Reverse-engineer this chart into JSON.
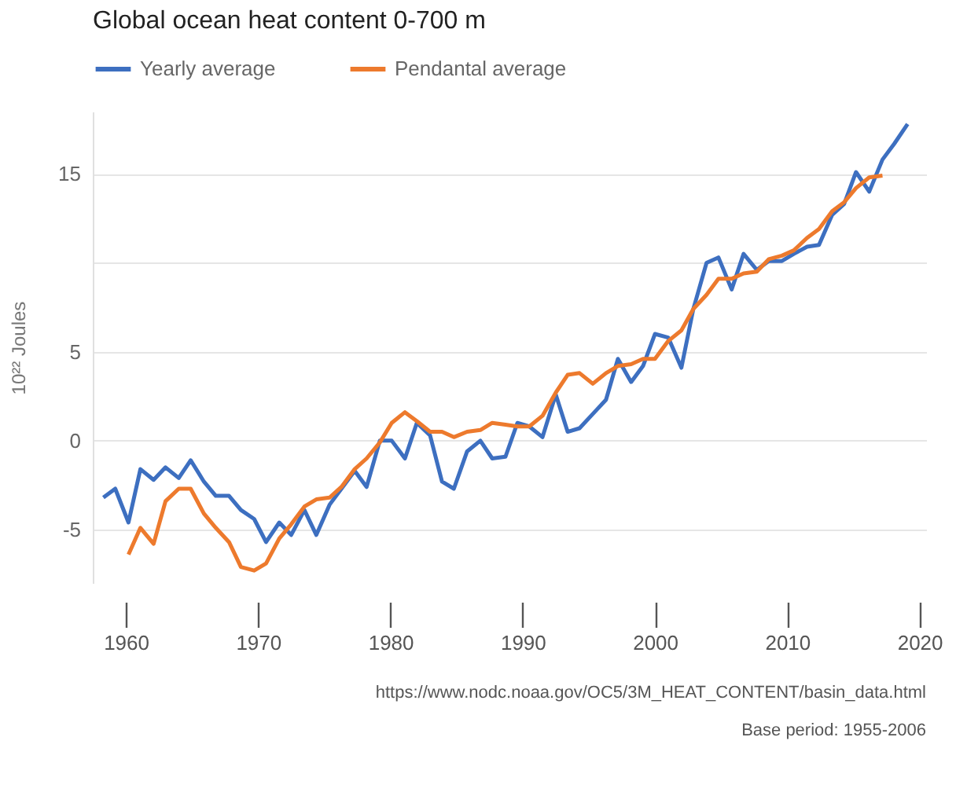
{
  "chart_data": {
    "type": "line",
    "title": "Global ocean heat content 0-700 m",
    "ylabel": "10²² Joules",
    "x": [
      1958.3,
      1959.2,
      1960.2,
      1961.1,
      1962.1,
      1963.0,
      1964.0,
      1964.9,
      1965.9,
      1966.8,
      1967.8,
      1968.7,
      1969.7,
      1970.6,
      1971.6,
      1972.5,
      1973.5,
      1974.4,
      1975.4,
      1976.3,
      1977.3,
      1978.2,
      1979.2,
      1980.1,
      1981.1,
      1982.0,
      1983.0,
      1983.9,
      1984.8,
      1985.8,
      1986.8,
      1987.7,
      1988.7,
      1989.6,
      1990.5,
      1991.5,
      1992.5,
      1993.4,
      1994.3,
      1995.3,
      1996.3,
      1997.2,
      1998.2,
      1999.1,
      2000.0,
      2001.0,
      2002.0,
      2002.9,
      2003.9,
      2004.8,
      2005.8,
      2006.7,
      2007.7,
      2008.6,
      2009.6,
      2010.5,
      2011.5,
      2012.4,
      2013.4,
      2014.3,
      2015.2,
      2016.2,
      2017.2,
      2018.1,
      2019.1
    ],
    "series": [
      {
        "name": "Yearly average",
        "color": "#3d6fc0",
        "values": [
          -3.2,
          -2.7,
          -4.6,
          -1.6,
          -2.2,
          -1.5,
          -2.1,
          -1.1,
          -2.3,
          -3.1,
          -3.1,
          -3.9,
          -4.4,
          -5.7,
          -4.6,
          -5.3,
          -3.9,
          -5.3,
          -3.6,
          -2.7,
          -1.7,
          -2.6,
          0,
          0,
          -1.0,
          1.0,
          0.3,
          -2.3,
          -2.7,
          -0.6,
          0,
          -1.0,
          -0.9,
          1.0,
          0.8,
          0.2,
          2.6,
          0.5,
          0.7,
          1.5,
          2.3,
          4.6,
          3.3,
          4.2,
          6.0,
          5.8,
          4.1,
          7.4,
          10.0,
          10.3,
          8.5,
          10.5,
          9.6,
          10.1,
          10.1,
          10.5,
          10.9,
          11.0,
          12.7,
          13.3,
          15.1,
          14.0,
          15.8,
          16.7,
          17.8
        ]
      },
      {
        "name": "Pendantal average",
        "color": "#ed7a2d",
        "values": [
          null,
          null,
          -6.4,
          -4.9,
          -5.8,
          -3.4,
          -2.7,
          -2.7,
          -4.1,
          -4.9,
          -5.7,
          -7.1,
          -7.3,
          -6.9,
          -5.5,
          -4.7,
          -3.7,
          -3.3,
          -3.2,
          -2.6,
          -1.6,
          -1.0,
          -0.1,
          1.0,
          1.6,
          1.1,
          0.5,
          0.5,
          0.2,
          0.5,
          0.6,
          1.0,
          0.9,
          0.8,
          0.8,
          1.4,
          2.7,
          3.7,
          3.8,
          3.2,
          3.8,
          4.2,
          4.3,
          4.6,
          4.6,
          5.6,
          6.2,
          7.4,
          8.2,
          9.1,
          9.1,
          9.4,
          9.5,
          10.2,
          10.4,
          10.7,
          11.4,
          11.9,
          12.9,
          13.4,
          14.2,
          14.8,
          14.9,
          null,
          null
        ]
      }
    ],
    "xlim": [
      1957.5,
      2020.5
    ],
    "xticks": [
      1960,
      1970,
      1980,
      1990,
      2000,
      2010,
      2020
    ],
    "ylim": [
      -8,
      18.5
    ],
    "yticks": [
      -5,
      0,
      5,
      {
        "value": 10,
        "label": null
      },
      15
    ],
    "grid": "y",
    "legend": "top",
    "marker": "none",
    "line_style": "solid",
    "annotations": [
      "https://www.nodc.noaa.gov/OC5/3M_HEAT_CONTENT/basin_data.html",
      "Base period: 1955-2006"
    ]
  }
}
